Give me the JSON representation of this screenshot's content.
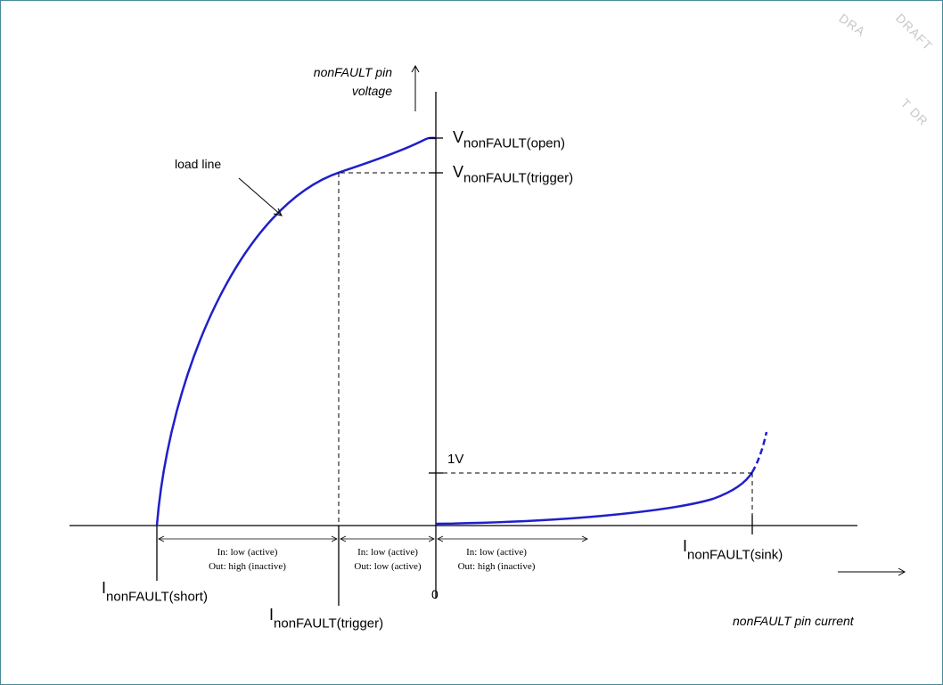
{
  "axes": {
    "y_title_line1": "nonFAULT pin",
    "y_title_line2": "voltage",
    "x_title": "nonFAULT pin current",
    "origin": "0"
  },
  "labels": {
    "load_line": "load line",
    "v_open": {
      "main": "V",
      "sub": "nonFAULT(open)"
    },
    "v_trigger": {
      "main": "V",
      "sub": "nonFAULT(trigger)"
    },
    "one_volt": "1V",
    "i_short": {
      "main": "I",
      "sub": "nonFAULT(short)"
    },
    "i_trigger": {
      "main": "I",
      "sub": "nonFAULT(trigger)"
    },
    "i_sink": {
      "main": "I",
      "sub": "nonFAULT(sink)"
    }
  },
  "regions": [
    {
      "line1": "In: low (active)",
      "line2": "Out: high (inactive)"
    },
    {
      "line1": "In: low (active)",
      "line2": "Out: low (active)"
    },
    {
      "line1": "In: low (active)",
      "line2": "Out: high (inactive)"
    }
  ],
  "watermarks": [
    "DRA",
    "DRAFT",
    "T DR"
  ],
  "colors": {
    "curve": "#1f1fcc",
    "frame": "#4a8a9a",
    "axis": "#000000",
    "watermark": "#c8c8c8"
  }
}
